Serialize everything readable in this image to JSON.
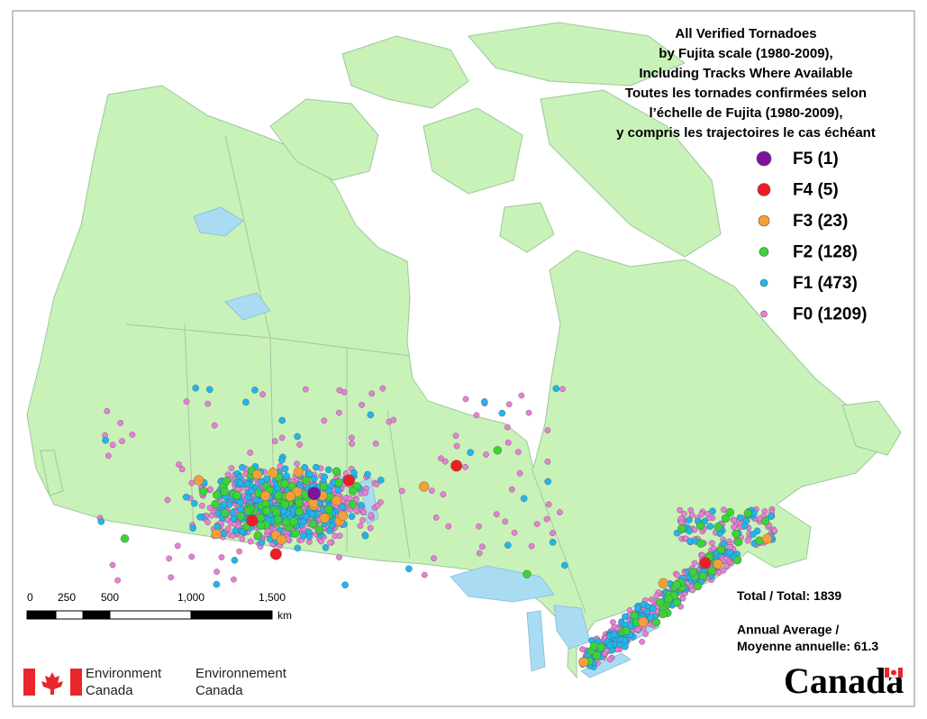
{
  "title": [
    "All Verified Tornadoes",
    "by Fujita scale (1980-2009),",
    "Including Tracks Where Available",
    "Toutes les tornades confirmées selon",
    "l’échelle de Fujita (1980-2009),",
    "y compris les trajectoires le cas échéant"
  ],
  "legend": [
    {
      "class": "F5",
      "count": 1,
      "color": "#7b139b"
    },
    {
      "class": "F4",
      "count": 5,
      "color": "#ee1c25"
    },
    {
      "class": "F3",
      "count": 23,
      "color": "#f59f3a"
    },
    {
      "class": "F2",
      "count": 128,
      "color": "#3ad33a"
    },
    {
      "class": "F1",
      "count": 473,
      "color": "#1fb6ee"
    },
    {
      "class": "F0",
      "count": 1209,
      "color": "#e97fd6"
    }
  ],
  "total": {
    "label": "Total / Total:",
    "value": 1839
  },
  "annual_average": {
    "label_en": "Annual Average /",
    "label_fr": "Moyenne annuelle:",
    "value": 61.3
  },
  "scale_bar": {
    "ticks": [
      "0",
      "250",
      "500",
      "1,000",
      "1,500"
    ],
    "unit": "km"
  },
  "logo": {
    "en": [
      "Environment",
      "Canada"
    ],
    "fr": [
      "Environnement",
      "Canada"
    ],
    "wordmark": "Canada"
  }
}
